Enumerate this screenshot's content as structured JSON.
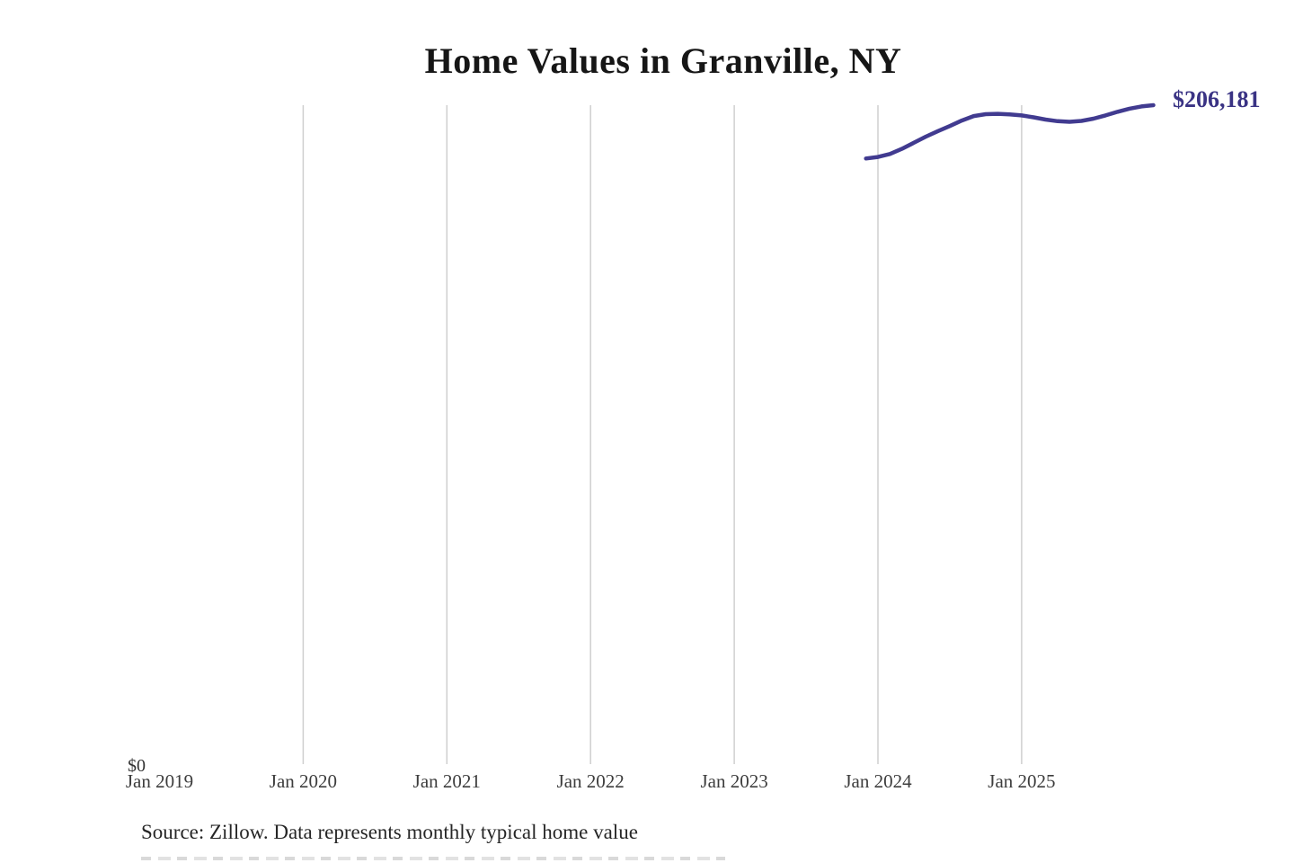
{
  "page": {
    "background": "#ffffff"
  },
  "chart_data": {
    "type": "line",
    "title": "Home Values in Granville, NY",
    "series_name": "Monthly typical home value",
    "x": [
      "Dec 2023",
      "Jan 2024",
      "Feb 2024",
      "Mar 2024",
      "Apr 2024",
      "May 2024",
      "Jun 2024",
      "Jul 2024",
      "Aug 2024",
      "Sep 2024",
      "Oct 2024",
      "Nov 2024",
      "Dec 2024",
      "Jan 2025",
      "Feb 2025",
      "Mar 2025",
      "Apr 2025",
      "May 2025",
      "Jun 2025",
      "Jul 2025",
      "Aug 2025",
      "Sep 2025",
      "Oct 2025",
      "Nov 2025",
      "Dec 2025"
    ],
    "values": [
      189600,
      190100,
      191000,
      192600,
      194500,
      196400,
      198100,
      199700,
      201400,
      202800,
      203400,
      203500,
      203300,
      203000,
      202400,
      201700,
      201200,
      201000,
      201300,
      202000,
      203000,
      204100,
      205100,
      205800,
      206181
    ],
    "x_tick_labels": [
      "Jan 2019",
      "Jan 2020",
      "Jan 2021",
      "Jan 2022",
      "Jan 2023",
      "Jan 2024",
      "Jan 2025"
    ],
    "y_axis": {
      "min": 0,
      "min_label": "$0"
    },
    "end_value": 206181,
    "end_value_label": "$206,181",
    "line_color": "#413b90",
    "gridline_color": "#cfcfcf",
    "grid": "vertical-only",
    "legend_position": "none",
    "ylim": [
      0,
      206181
    ]
  },
  "footer": {
    "source": "Source: Zillow. Data represents monthly typical home value"
  }
}
